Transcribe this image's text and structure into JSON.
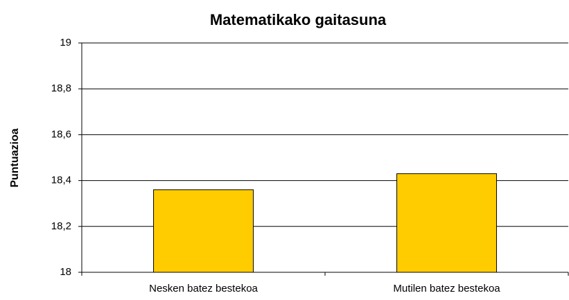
{
  "chart_data": {
    "type": "bar",
    "title": "Matematikako gaitasuna",
    "y_label": "Puntuazioa",
    "categories": [
      "Nesken batez bestekoa",
      "Mutilen batez bestekoa"
    ],
    "values": [
      18.36,
      18.43
    ],
    "color": "#ffcc00",
    "ylim": [
      18,
      19
    ],
    "yticks": [
      18,
      {
        "value": 18.2,
        "label": "18,2"
      },
      {
        "value": 18.4,
        "label": "18,4"
      },
      {
        "value": 18.6,
        "label": "18,6"
      },
      {
        "value": 18.8,
        "label": "18,8"
      },
      19
    ],
    "grid": true
  }
}
